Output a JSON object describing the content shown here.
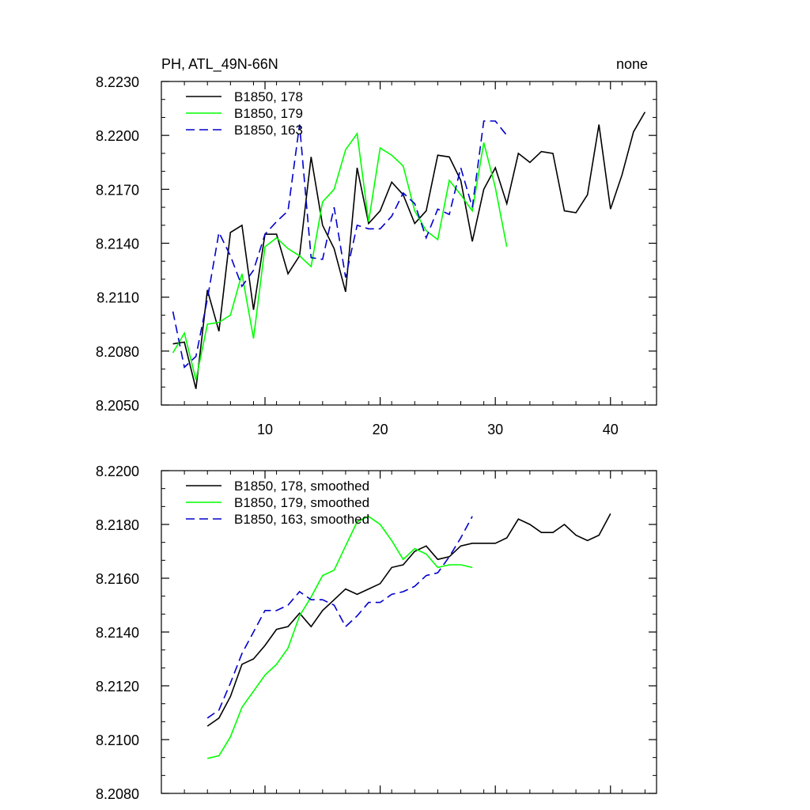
{
  "chart_data": [
    {
      "type": "line",
      "title_left": "PH, ATL_49N-66N",
      "title_right": "none",
      "xlim": [
        1,
        44
      ],
      "ylim": [
        8.205,
        8.223
      ],
      "xticks": [
        10,
        20,
        30,
        40
      ],
      "xticklabels": [
        "10",
        "20",
        "30",
        "40"
      ],
      "yticks": [
        8.205,
        8.208,
        8.211,
        8.214,
        8.217,
        8.22,
        8.223
      ],
      "yticklabels": [
        "8.2050",
        "8.2080",
        "8.2110",
        "8.2140",
        "8.2170",
        "8.2200",
        "8.2230"
      ],
      "legend_position": "top-left",
      "series": [
        {
          "name": "B1850, 178",
          "color": "#000000",
          "dash": "solid",
          "x": [
            2,
            3,
            4,
            5,
            6,
            7,
            8,
            9,
            10,
            11,
            12,
            13,
            14,
            15,
            16,
            17,
            18,
            19,
            20,
            21,
            22,
            23,
            24,
            25,
            26,
            27,
            28,
            29,
            30,
            31,
            32,
            33,
            34,
            35,
            36,
            37,
            38,
            39,
            40,
            41,
            42,
            43
          ],
          "y": [
            8.2084,
            8.2085,
            8.2059,
            8.2114,
            8.2091,
            8.2146,
            8.215,
            8.2103,
            8.2145,
            8.2145,
            8.2123,
            8.2133,
            8.2188,
            8.215,
            8.2137,
            8.2113,
            8.2182,
            8.2151,
            8.2158,
            8.2174,
            8.2167,
            8.2151,
            8.2158,
            8.2189,
            8.2188,
            8.2175,
            8.2141,
            8.217,
            8.2182,
            8.2162,
            8.219,
            8.2185,
            8.2191,
            8.219,
            8.2158,
            8.2157,
            8.2167,
            8.2206,
            8.2159,
            8.2178,
            8.2202,
            8.2213
          ]
        },
        {
          "name": "B1850, 179",
          "color": "#00ff00",
          "dash": "solid",
          "x": [
            2,
            3,
            4,
            5,
            6,
            7,
            8,
            9,
            10,
            11,
            12,
            13,
            14,
            15,
            16,
            17,
            18,
            19,
            20,
            21,
            22,
            23,
            24,
            25,
            26,
            27,
            28,
            29,
            30,
            31
          ],
          "y": [
            8.2079,
            8.209,
            8.2064,
            8.2095,
            8.2096,
            8.21,
            8.2123,
            8.2087,
            8.2138,
            8.2143,
            8.2137,
            8.2133,
            8.2127,
            8.2163,
            8.217,
            8.2192,
            8.2201,
            8.2152,
            8.2193,
            8.2189,
            8.2183,
            8.2158,
            8.2147,
            8.2142,
            8.2175,
            8.2167,
            8.2158,
            8.2196,
            8.2171,
            8.2138
          ]
        },
        {
          "name": "B1850, 163",
          "color": "#0000cc",
          "dash": "dashed",
          "x": [
            2,
            3,
            4,
            5,
            6,
            7,
            8,
            9,
            10,
            11,
            12,
            13,
            14,
            15,
            16,
            17,
            18,
            19,
            20,
            21,
            22,
            23,
            24,
            25,
            26,
            27,
            28,
            29,
            30,
            31
          ],
          "y": [
            8.2102,
            8.2071,
            8.2077,
            8.2109,
            8.2146,
            8.2133,
            8.2116,
            8.2125,
            8.2145,
            8.2152,
            8.2158,
            8.2206,
            8.2132,
            8.2131,
            8.216,
            8.2121,
            8.215,
            8.2148,
            8.2148,
            8.2155,
            8.2168,
            8.2162,
            8.2143,
            8.2159,
            8.2156,
            8.2182,
            8.216,
            8.2208,
            8.2208,
            8.22
          ]
        }
      ]
    },
    {
      "type": "line",
      "xlim": [
        1,
        44
      ],
      "ylim": [
        8.208,
        8.22
      ],
      "xticks": [
        10,
        20,
        30,
        40
      ],
      "xticklabels": [],
      "yticks": [
        8.208,
        8.21,
        8.212,
        8.214,
        8.216,
        8.218,
        8.22
      ],
      "yticklabels": [
        "8.2080",
        "8.2100",
        "8.2120",
        "8.2140",
        "8.2160",
        "8.2180",
        "8.2200"
      ],
      "legend_position": "top-left",
      "series": [
        {
          "name": "B1850, 178, smoothed",
          "color": "#000000",
          "dash": "solid",
          "x": [
            5,
            6,
            7,
            8,
            9,
            10,
            11,
            12,
            13,
            14,
            15,
            16,
            17,
            18,
            19,
            20,
            21,
            22,
            23,
            24,
            25,
            26,
            27,
            28,
            29,
            30,
            31,
            32,
            33,
            34,
            35,
            36,
            37,
            38,
            39,
            40
          ],
          "y": [
            8.2105,
            8.2108,
            8.2116,
            8.2128,
            8.213,
            8.2135,
            8.2141,
            8.2142,
            8.2147,
            8.2142,
            8.2148,
            8.2152,
            8.2156,
            8.2154,
            8.2156,
            8.2158,
            8.2164,
            8.2165,
            8.217,
            8.2172,
            8.2167,
            8.2168,
            8.2172,
            8.2173,
            8.2173,
            8.2173,
            8.2175,
            8.2182,
            8.218,
            8.2177,
            8.2177,
            8.218,
            8.2176,
            8.2174,
            8.2176,
            8.2184
          ]
        },
        {
          "name": "B1850, 179, smoothed",
          "color": "#00ff00",
          "dash": "solid",
          "x": [
            5,
            6,
            7,
            8,
            9,
            10,
            11,
            12,
            13,
            14,
            15,
            16,
            17,
            18,
            19,
            20,
            21,
            22,
            23,
            24,
            25,
            26,
            27,
            28
          ],
          "y": [
            8.2093,
            8.2094,
            8.2101,
            8.2112,
            8.2118,
            8.2124,
            8.2128,
            8.2134,
            8.2146,
            8.2153,
            8.2161,
            8.2163,
            8.2172,
            8.2181,
            8.2183,
            8.218,
            8.2174,
            8.2167,
            8.2171,
            8.2169,
            8.2164,
            8.2165,
            8.2165,
            8.2164
          ]
        },
        {
          "name": "B1850, 163, smoothed",
          "color": "#0000cc",
          "dash": "dashed",
          "x": [
            5,
            6,
            7,
            8,
            9,
            10,
            11,
            12,
            13,
            14,
            15,
            16,
            17,
            18,
            19,
            20,
            21,
            22,
            23,
            24,
            25,
            26,
            27,
            28
          ],
          "y": [
            8.2108,
            8.2111,
            8.2121,
            8.2132,
            8.214,
            8.2148,
            8.2148,
            8.215,
            8.2155,
            8.2152,
            8.2152,
            8.215,
            8.2142,
            8.2146,
            8.2151,
            8.2151,
            8.2154,
            8.2155,
            8.2157,
            8.2161,
            8.2162,
            8.2168,
            8.2175,
            8.2183
          ]
        }
      ]
    }
  ]
}
